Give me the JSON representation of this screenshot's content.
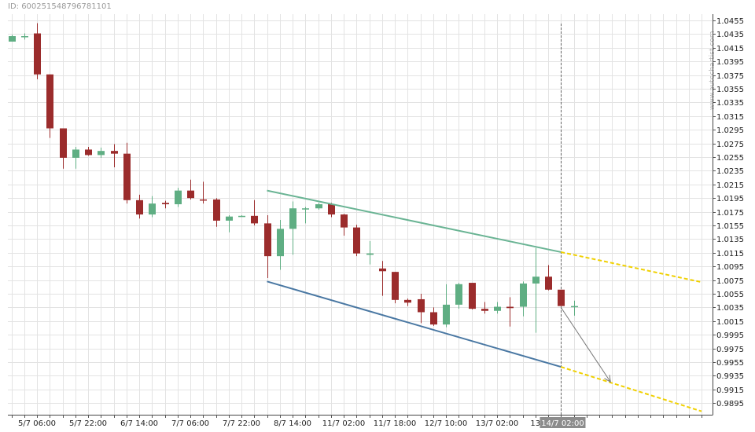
{
  "chart_id": "ID: 600251548796781101",
  "watermark": "www.autochartist.com",
  "colors": {
    "bull": "#5fae83",
    "bear": "#9b2c2c",
    "upper_trend": "#6ab494",
    "lower_trend": "#4a78a3",
    "projection": "#f0d000",
    "arrow": "#777777",
    "grid": "#e3e3e3",
    "marker_bg": "#8c8c8c"
  },
  "chart_data": {
    "type": "candlestick",
    "title": "",
    "xlabel": "",
    "ylabel": "",
    "ylim": [
      0.988,
      1.046
    ],
    "y_ticks": [
      "1.0455",
      "1.0435",
      "1.0415",
      "1.0395",
      "1.0375",
      "1.0355",
      "1.0335",
      "1.0315",
      "1.0295",
      "1.0275",
      "1.0255",
      "1.0235",
      "1.0215",
      "1.0195",
      "1.0175",
      "1.0155",
      "1.0135",
      "1.0115",
      "1.0095",
      "1.0075",
      "1.0055",
      "1.0035",
      "1.0015",
      "0.9995",
      "0.9975",
      "0.9955",
      "0.9935",
      "0.9915",
      "0.9895"
    ],
    "x_tick_labels": [
      {
        "label": "5/7 06:00",
        "index": 2
      },
      {
        "label": "5/7 22:00",
        "index": 6
      },
      {
        "label": "6/7 14:00",
        "index": 10
      },
      {
        "label": "7/7 06:00",
        "index": 14
      },
      {
        "label": "7/7 22:00",
        "index": 18
      },
      {
        "label": "8/7 14:00",
        "index": 22
      },
      {
        "label": "11/7 02:00",
        "index": 26
      },
      {
        "label": "11/7 18:00",
        "index": 30
      },
      {
        "label": "12/7 10:00",
        "index": 34
      },
      {
        "label": "13/7 02:00",
        "index": 38
      },
      {
        "label": "13",
        "index": 41
      }
    ],
    "current_marker": {
      "label": "14/7 02:00",
      "index": 43
    },
    "candles": [
      {
        "o": 1.0424,
        "h": 1.0434,
        "l": 1.0424,
        "c": 1.0432
      },
      {
        "o": 1.0432,
        "h": 1.0436,
        "l": 1.0427,
        "c": 1.0432
      },
      {
        "o": 1.0436,
        "h": 1.0451,
        "l": 1.0369,
        "c": 1.0376
      },
      {
        "o": 1.0376,
        "h": 1.0376,
        "l": 1.0283,
        "c": 1.0297
      },
      {
        "o": 1.0297,
        "h": 1.0297,
        "l": 1.0238,
        "c": 1.0254
      },
      {
        "o": 1.0254,
        "h": 1.027,
        "l": 1.0238,
        "c": 1.0266
      },
      {
        "o": 1.0266,
        "h": 1.027,
        "l": 1.0257,
        "c": 1.0258
      },
      {
        "o": 1.0258,
        "h": 1.0269,
        "l": 1.0254,
        "c": 1.0264
      },
      {
        "o": 1.0264,
        "h": 1.0274,
        "l": 1.024,
        "c": 1.026
      },
      {
        "o": 1.026,
        "h": 1.0276,
        "l": 1.0187,
        "c": 1.0192
      },
      {
        "o": 1.0192,
        "h": 1.02,
        "l": 1.0165,
        "c": 1.0171
      },
      {
        "o": 1.0171,
        "h": 1.0198,
        "l": 1.0167,
        "c": 1.0187
      },
      {
        "o": 1.0188,
        "h": 1.0191,
        "l": 1.018,
        "c": 1.0186
      },
      {
        "o": 1.0186,
        "h": 1.021,
        "l": 1.0182,
        "c": 1.0206
      },
      {
        "o": 1.0206,
        "h": 1.0222,
        "l": 1.0193,
        "c": 1.0195
      },
      {
        "o": 1.0193,
        "h": 1.0219,
        "l": 1.0187,
        "c": 1.0192
      },
      {
        "o": 1.0193,
        "h": 1.0195,
        "l": 1.0153,
        "c": 1.0162
      },
      {
        "o": 1.0162,
        "h": 1.017,
        "l": 1.0145,
        "c": 1.0168
      },
      {
        "o": 1.0168,
        "h": 1.017,
        "l": 1.0168,
        "c": 1.0169
      },
      {
        "o": 1.0169,
        "h": 1.0192,
        "l": 1.0155,
        "c": 1.0158
      },
      {
        "o": 1.0158,
        "h": 1.017,
        "l": 1.0078,
        "c": 1.011
      },
      {
        "o": 1.011,
        "h": 1.0163,
        "l": 1.009,
        "c": 1.015
      },
      {
        "o": 1.015,
        "h": 1.019,
        "l": 1.0112,
        "c": 1.018
      },
      {
        "o": 1.018,
        "h": 1.0182,
        "l": 1.0158,
        "c": 1.018
      },
      {
        "o": 1.018,
        "h": 1.0188,
        "l": 1.0178,
        "c": 1.0186
      },
      {
        "o": 1.0186,
        "h": 1.0188,
        "l": 1.0167,
        "c": 1.0171
      },
      {
        "o": 1.0171,
        "h": 1.0172,
        "l": 1.014,
        "c": 1.0152
      },
      {
        "o": 1.0152,
        "h": 1.0156,
        "l": 1.011,
        "c": 1.0114
      },
      {
        "o": 1.0112,
        "h": 1.0132,
        "l": 1.0098,
        "c": 1.0114
      },
      {
        "o": 1.0092,
        "h": 1.0103,
        "l": 1.0052,
        "c": 1.0088
      },
      {
        "o": 1.0087,
        "h": 1.0087,
        "l": 1.0041,
        "c": 1.0046
      },
      {
        "o": 1.0046,
        "h": 1.0048,
        "l": 1.0037,
        "c": 1.0042
      },
      {
        "o": 1.0047,
        "h": 1.0055,
        "l": 1.0012,
        "c": 1.0028
      },
      {
        "o": 1.0028,
        "h": 1.0035,
        "l": 1.0008,
        "c": 1.001
      },
      {
        "o": 1.001,
        "h": 1.0069,
        "l": 1.0006,
        "c": 1.0039
      },
      {
        "o": 1.0039,
        "h": 1.0071,
        "l": 1.0033,
        "c": 1.0069
      },
      {
        "o": 1.0071,
        "h": 1.0071,
        "l": 1.0032,
        "c": 1.0033
      },
      {
        "o": 1.0033,
        "h": 1.0043,
        "l": 1.0026,
        "c": 1.003
      },
      {
        "o": 1.003,
        "h": 1.0043,
        "l": 1.0026,
        "c": 1.0036
      },
      {
        "o": 1.0036,
        "h": 1.005,
        "l": 1.0007,
        "c": 1.0034
      },
      {
        "o": 1.0036,
        "h": 1.0073,
        "l": 1.0022,
        "c": 1.007
      },
      {
        "o": 1.007,
        "h": 1.0122,
        "l": 0.9998,
        "c": 1.008
      },
      {
        "o": 1.008,
        "h": 1.0097,
        "l": 1.006,
        "c": 1.0061
      },
      {
        "o": 1.0061,
        "h": 1.0061,
        "l": 1.0037,
        "c": 1.0037
      },
      {
        "o": 1.0037,
        "h": 1.0045,
        "l": 1.0023,
        "c": 1.0037
      }
    ],
    "upper_trendline": {
      "start_index": 20,
      "start_value": 1.0206,
      "end_index": 43,
      "end_value": 1.0116
    },
    "lower_trendline": {
      "start_index": 20,
      "start_value": 1.0073,
      "end_index": 43,
      "end_value": 0.9948
    },
    "upper_projection": {
      "start_index": 43,
      "start_value": 1.0116,
      "end_index": 54,
      "end_value": 1.0072
    },
    "lower_projection": {
      "start_index": 43,
      "start_value": 0.9948,
      "end_index": 54,
      "end_value": 0.9883
    },
    "forecast_arrow": {
      "from_index": 43,
      "from_value": 1.0035,
      "to_index": 47,
      "to_value": 0.9926
    }
  }
}
